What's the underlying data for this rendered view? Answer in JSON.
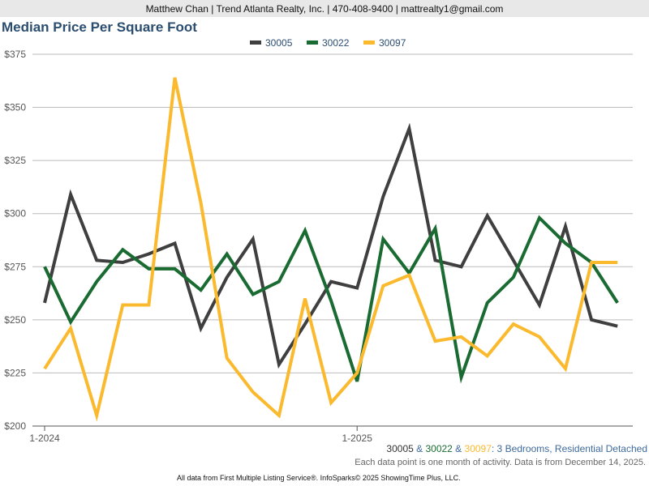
{
  "header": {
    "contact": "Matthew Chan | Trend Atlanta Realty, Inc. | 470-408-9400 | mattrealty1@gmail.com"
  },
  "chart_data": {
    "type": "line",
    "title": "Median Price Per Square Foot",
    "x": [
      "1-2024",
      "2-2024",
      "3-2024",
      "4-2024",
      "5-2024",
      "6-2024",
      "7-2024",
      "8-2024",
      "9-2024",
      "10-2024",
      "11-2024",
      "12-2024",
      "1-2025",
      "2-2025",
      "3-2025",
      "4-2025",
      "5-2025",
      "6-2025",
      "7-2025",
      "8-2025",
      "9-2025",
      "10-2025",
      "11-2025"
    ],
    "xticks": [
      "1-2024",
      "1-2025"
    ],
    "yticks": [
      "$200",
      "$225",
      "$250",
      "$275",
      "$300",
      "$325",
      "$350",
      "$375"
    ],
    "ylim": [
      200,
      375
    ],
    "legend": "top-center",
    "grid": true,
    "series": [
      {
        "name": "30005",
        "color": "#3f3f3f",
        "values": [
          258,
          309,
          278,
          277,
          281,
          286,
          246,
          270,
          288,
          229,
          248,
          268,
          265,
          308,
          340,
          278,
          275,
          299,
          278,
          257,
          294,
          250,
          247
        ]
      },
      {
        "name": "30022",
        "color": "#1a6b32",
        "values": [
          275,
          249,
          268,
          283,
          274,
          274,
          264,
          281,
          262,
          268,
          292,
          259,
          221,
          288,
          272,
          293,
          223,
          258,
          270,
          298,
          286,
          277,
          258
        ]
      },
      {
        "name": "30097",
        "color": "#fbb92e",
        "values": [
          227,
          246,
          205,
          257,
          257,
          364,
          305,
          232,
          216,
          205,
          260,
          211,
          225,
          266,
          271,
          240,
          242,
          233,
          248,
          242,
          227,
          277,
          277
        ]
      }
    ]
  },
  "subtitle": {
    "sep1": " & ",
    "sep2": " & ",
    "rest": ": 3 Bedrooms, Residential Detached"
  },
  "note": "Each data point is one month of activity. Data is from December 14, 2025.",
  "footer": "All data from First Multiple Listing Service®. InfoSparks© 2025 ShowingTime Plus, LLC."
}
